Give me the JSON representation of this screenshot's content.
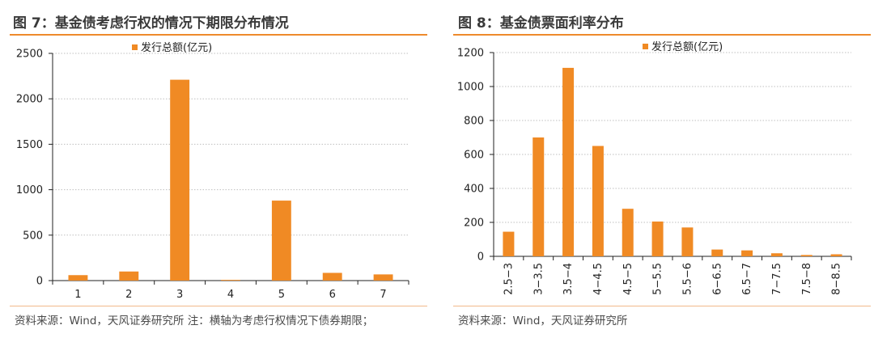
{
  "theme": {
    "bar_color": "#f08a24",
    "rule_color": "#ee8a2c",
    "grid_color": "#bfbfbf"
  },
  "figures": [
    {
      "title": "图 7：基金债考虑行权的情况下期限分布情况",
      "source": "资料来源：Wind，天风证券研究所    注：横轴为考虑行权情况下债券期限；",
      "chart_data": {
        "type": "bar",
        "categories": [
          "1",
          "2",
          "3",
          "4",
          "5",
          "6",
          "7"
        ],
        "series": [
          {
            "name": "发行总额(亿元)",
            "values": [
              60,
              100,
              2210,
              8,
              880,
              85,
              68
            ]
          }
        ],
        "yticks": [
          "0",
          "500",
          "1000",
          "1500",
          "2000",
          "2500"
        ],
        "ylim": [
          0,
          2500
        ],
        "legend_position": "top",
        "grid": true,
        "xlabel": "",
        "ylabel": ""
      }
    },
    {
      "title": "图 8：基金债票面利率分布",
      "source": "资料来源：Wind，天风证券研究所",
      "chart_data": {
        "type": "bar",
        "categories": [
          "2.5−3",
          "3−3.5",
          "3.5−4",
          "4−4.5",
          "4.5−5",
          "5−5.5",
          "5.5−6",
          "6−6.5",
          "6.5−7",
          "7−7.5",
          "7.5−8",
          "8−8.5"
        ],
        "series": [
          {
            "name": "发行总额(亿元)",
            "values": [
              145,
              700,
              1110,
              650,
              280,
              205,
              170,
              40,
              35,
              18,
              8,
              12
            ]
          }
        ],
        "yticks": [
          "0",
          "200",
          "400",
          "600",
          "800",
          "1000",
          "1200"
        ],
        "ylim": [
          0,
          1200
        ],
        "legend_position": "top",
        "grid": true,
        "xlabel": "",
        "ylabel": ""
      }
    }
  ]
}
